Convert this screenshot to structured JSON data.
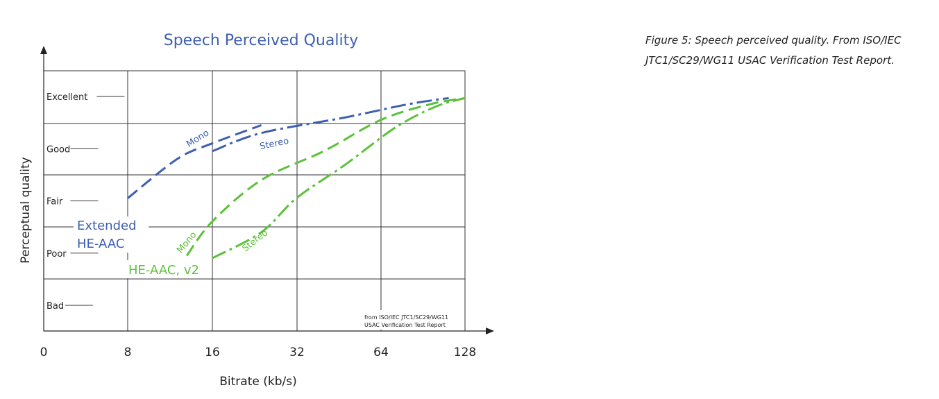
{
  "chart_data": {
    "type": "line",
    "title": "Speech Perceived Quality",
    "xlabel": "Bitrate (kb/s)",
    "ylabel": "Perceptual quality",
    "x_ticks": [
      "0",
      "8",
      "16",
      "32",
      "64",
      "128"
    ],
    "y_categories": [
      "Bad",
      "Poor",
      "Fair",
      "Good",
      "Excellent"
    ],
    "grid": true,
    "source_note": [
      "from ISO/IEC JTC1/SC29/WG11",
      "USAC Verification Test Report"
    ],
    "groups": [
      {
        "label": [
          "Extended",
          "HE-AAC"
        ],
        "color": "#3d5fb0"
      },
      {
        "label": [
          "HE-AAC, v2"
        ],
        "color": "#5cc13a"
      }
    ],
    "series": [
      {
        "name": "Mono",
        "group": 0,
        "dash": "dash",
        "points": [
          [
            8,
            2.05
          ],
          [
            12,
            2.8
          ],
          [
            16,
            3.1
          ],
          [
            24,
            3.45
          ]
        ]
      },
      {
        "name": "Stereo",
        "group": 0,
        "dash": "dashdot",
        "points": [
          [
            16,
            2.95
          ],
          [
            24,
            3.3
          ],
          [
            48,
            3.6
          ],
          [
            80,
            3.85
          ],
          [
            112,
            3.97
          ]
        ]
      },
      {
        "name": "Mono",
        "group": 1,
        "dash": "dash",
        "points": [
          [
            13,
            0.95
          ],
          [
            16,
            1.6
          ],
          [
            24,
            2.4
          ],
          [
            40,
            2.95
          ],
          [
            64,
            3.55
          ],
          [
            96,
            3.85
          ],
          [
            128,
            3.97
          ]
        ]
      },
      {
        "name": "Stereo",
        "group": 1,
        "dash": "dashdot",
        "points": [
          [
            16,
            0.9
          ],
          [
            24,
            1.4
          ],
          [
            32,
            2.05
          ],
          [
            48,
            2.7
          ],
          [
            72,
            3.4
          ],
          [
            100,
            3.8
          ],
          [
            128,
            3.97
          ]
        ]
      }
    ]
  },
  "caption": "Figure 5: Speech perceived quality. From ISO/IEC JTC1/SC29/WG11 USAC Verification Test Report."
}
